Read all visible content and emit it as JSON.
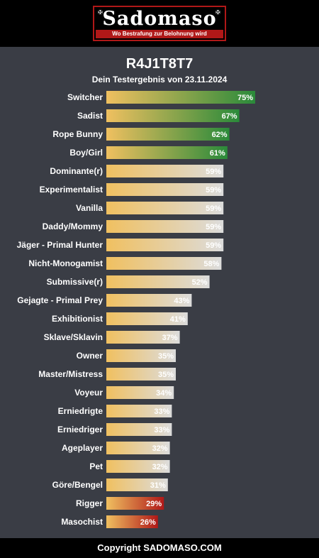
{
  "header": {
    "logo_text": "Sadomaso",
    "logo_tagline": "Wo Bestrafung zur Belohnung wird"
  },
  "title": "R4J1T8T7",
  "subtitle": "Dein Testergebnis von 23.11.2024",
  "footer": "Copyright SADOMASO.COM",
  "colors": {
    "background": "#3a3d45",
    "bar_start": "#f0c060",
    "bar_neutral_end": "#dcdcdc",
    "bar_high_end": "#2a8a3a",
    "bar_low_end": "#b01818"
  },
  "chart_data": {
    "type": "bar",
    "orientation": "horizontal",
    "xlim": [
      0,
      100
    ],
    "categories": [
      "Switcher",
      "Sadist",
      "Rope Bunny",
      "Boy/Girl",
      "Dominante(r)",
      "Experimentalist",
      "Vanilla",
      "Daddy/Mommy",
      "Jäger - Primal Hunter",
      "Nicht-Monogamist",
      "Submissive(r)",
      "Gejagte - Primal Prey",
      "Exhibitionist",
      "Sklave/Sklavin",
      "Owner",
      "Master/Mistress",
      "Voyeur",
      "Erniedrigte",
      "Erniedriger",
      "Ageplayer",
      "Pet",
      "Göre/Bengel",
      "Rigger",
      "Masochist"
    ],
    "values": [
      75,
      67,
      62,
      61,
      59,
      59,
      59,
      59,
      59,
      58,
      52,
      43,
      41,
      37,
      35,
      35,
      34,
      33,
      33,
      32,
      32,
      31,
      29,
      26
    ],
    "value_labels": [
      "75%",
      "67%",
      "62%",
      "61%",
      "59%",
      "59%",
      "59%",
      "59%",
      "59%",
      "58%",
      "52%",
      "43%",
      "41%",
      "37%",
      "35%",
      "35%",
      "34%",
      "33%",
      "33%",
      "32%",
      "32%",
      "31%",
      "29%",
      "26%"
    ],
    "levels": [
      "high",
      "high",
      "high",
      "high",
      "neutral",
      "neutral",
      "neutral",
      "neutral",
      "neutral",
      "neutral",
      "neutral",
      "neutral",
      "neutral",
      "neutral",
      "neutral",
      "neutral",
      "neutral",
      "neutral",
      "neutral",
      "neutral",
      "neutral",
      "neutral",
      "low",
      "low"
    ]
  }
}
